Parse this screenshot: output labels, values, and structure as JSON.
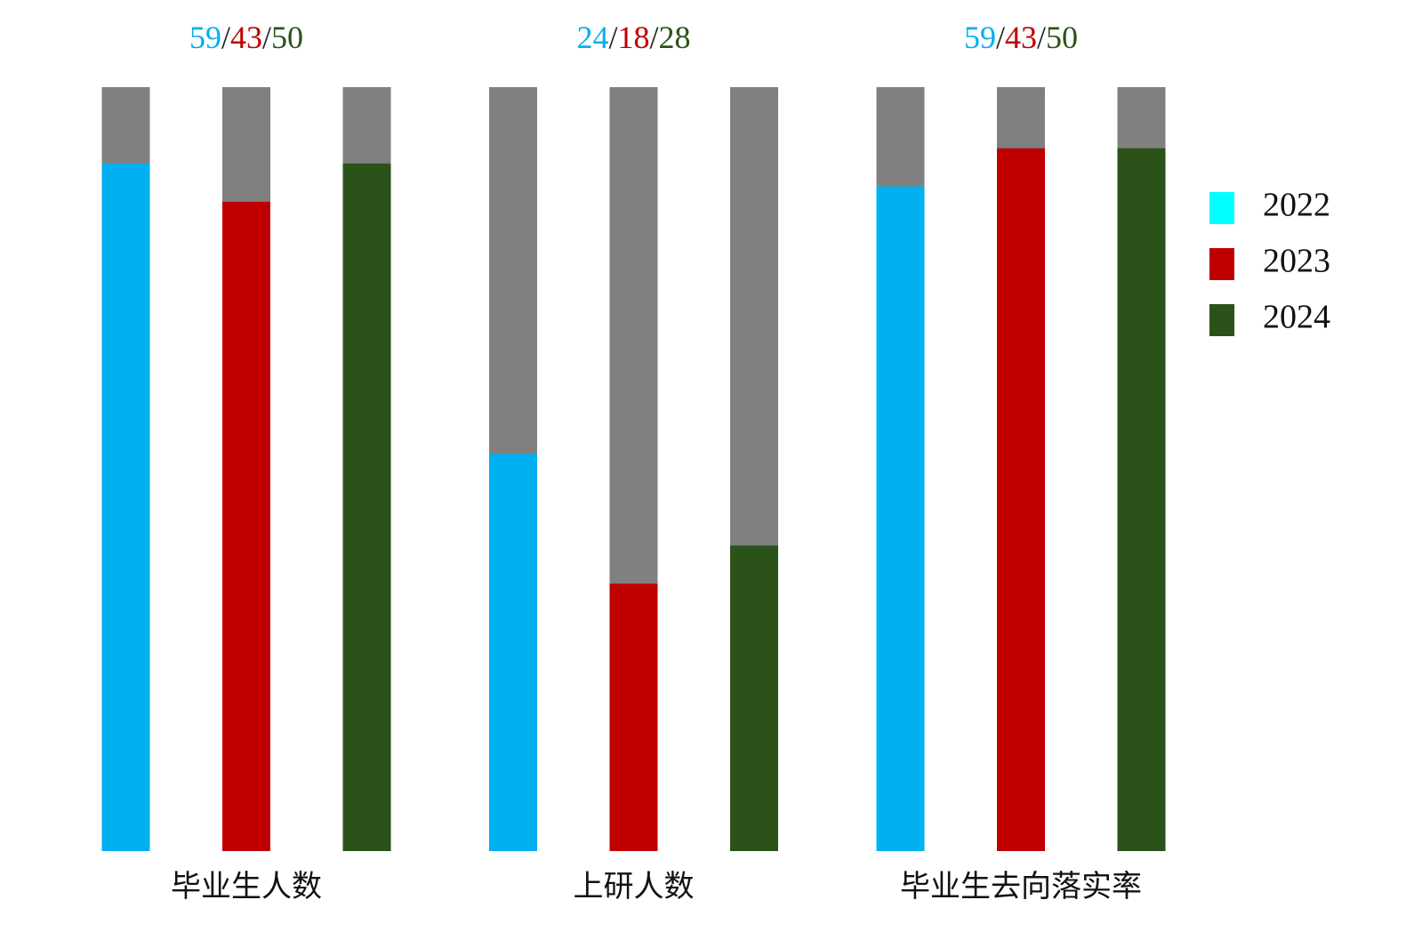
{
  "chart_data": {
    "type": "progress-bar",
    "categories": [
      "毕业生人数",
      "上研人数",
      "毕业生去向落实率"
    ],
    "series": [
      {
        "name": "2022",
        "color": "#00b0f0",
        "legend_color": "#00ffff",
        "values": [
          90,
          52,
          87
        ]
      },
      {
        "name": "2023",
        "color": "#c00000",
        "legend_color": "#c00000",
        "values": [
          85,
          35,
          92
        ]
      },
      {
        "name": "2024",
        "color": "#2a5219",
        "legend_color": "#2a5219",
        "values": [
          90,
          40,
          92
        ]
      }
    ],
    "ylim": [
      0,
      100
    ],
    "remainder_color": "#808080",
    "top_labels": [
      [
        59,
        43,
        50
      ],
      [
        24,
        18,
        28
      ],
      [
        59,
        43,
        50
      ]
    ],
    "separator": "/",
    "separator_color": "#222222",
    "legend": "right"
  }
}
